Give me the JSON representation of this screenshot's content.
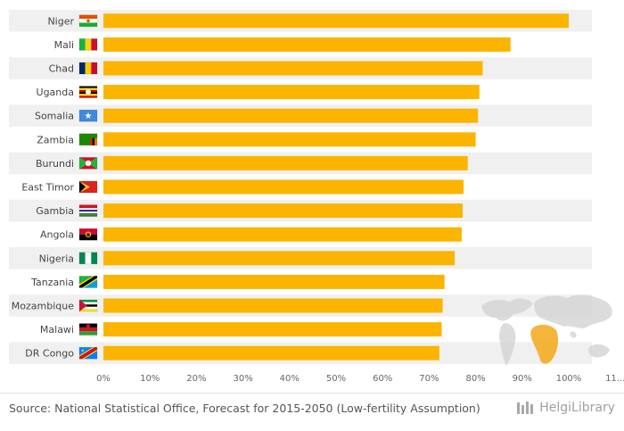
{
  "chart_data": {
    "type": "bar",
    "orientation": "horizontal",
    "categories": [
      "Niger",
      "Mali",
      "Chad",
      "Uganda",
      "Somalia",
      "Zambia",
      "Burundi",
      "East Timor",
      "Gambia",
      "Angola",
      "Nigeria",
      "Tanzania",
      "Mozambique",
      "Malawi",
      "DR Congo"
    ],
    "values": [
      100,
      87.5,
      81.5,
      80.8,
      80.5,
      80,
      78.3,
      77.4,
      77.2,
      77,
      75.5,
      73.3,
      72.9,
      72.7,
      72.2
    ],
    "xlim": [
      0,
      110
    ],
    "xticks": [
      "0%",
      "10%",
      "20%",
      "30%",
      "40%",
      "50%",
      "60%",
      "70%",
      "80%",
      "90%",
      "100%",
      "11..."
    ],
    "bar_color": "#fbb400",
    "title": "",
    "xlabel": "",
    "ylabel": ""
  },
  "flags": [
    "niger-flag",
    "mali-flag",
    "chad-flag",
    "uganda-flag",
    "somalia-flag",
    "zambia-flag",
    "burundi-flag",
    "east-timor-flag",
    "gambia-flag",
    "angola-flag",
    "nigeria-flag",
    "tanzania-flag",
    "mozambique-flag",
    "malawi-flag",
    "dr-congo-flag"
  ],
  "source": "Source: National Statistical Office, Forecast for 2015-2050 (Low-fertility Assumption)",
  "logo": {
    "text": "HelgiLibrary",
    "icon": "library-columns-icon"
  }
}
